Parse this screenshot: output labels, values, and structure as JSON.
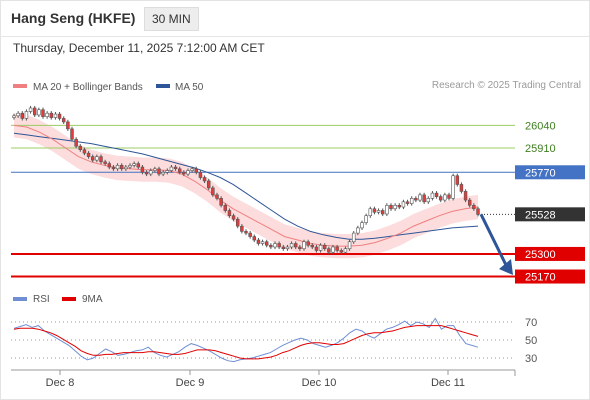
{
  "header": {
    "title": "Hang Seng (HKFE)",
    "timeframe": "30 MIN",
    "datetime": "Thursday, December 11, 2025 7:12:00 AM CET",
    "credit": "Research © 2025 Trading Central"
  },
  "colors": {
    "candle_up": "#ffffff",
    "candle_down": "#e03c3c",
    "candle_outline": "#555555",
    "ma20": "#f08080",
    "bollinger_fill": "#fbd3d3",
    "ma50": "#2e5597",
    "resistance": "#9ccc65",
    "pivot": "#4472c4",
    "support": "#e00000",
    "current_price": "#333333",
    "rsi": "#6f8ed4",
    "rsi_ma": "#e00000",
    "arrow": "#2e5597"
  },
  "chart_data": [
    {
      "type": "line",
      "subtype": "candlestick",
      "title": "Hang Seng (HKFE)",
      "timeframe": "30 MIN",
      "x_tick_labels": [
        "Dec 8",
        "Dec 9",
        "Dec 10",
        "Dec 11"
      ],
      "legend": [
        {
          "name": "MA 20 + Bollinger Bands",
          "color": "#f08080"
        },
        {
          "name": "MA 50",
          "color": "#2e5597"
        }
      ],
      "legend_placement": "top-left",
      "ylim": [
        25150,
        26140
      ],
      "levels": [
        {
          "label": "26040",
          "value": 26040,
          "kind": "resistance"
        },
        {
          "label": "25910",
          "value": 25910,
          "kind": "resistance"
        },
        {
          "label": "25770",
          "value": 25770,
          "kind": "pivot"
        },
        {
          "label": "25528",
          "value": 25528,
          "kind": "current"
        },
        {
          "label": "25300",
          "value": 25300,
          "kind": "support"
        },
        {
          "label": "25170",
          "value": 25170,
          "kind": "support"
        }
      ],
      "close": [
        26095,
        26110,
        26080,
        26120,
        26140,
        26100,
        26130,
        26090,
        26110,
        26085,
        26105,
        26080,
        26060,
        26020,
        25960,
        25920,
        25900,
        25880,
        25860,
        25840,
        25860,
        25830,
        25820,
        25800,
        25790,
        25810,
        25790,
        25800,
        25810,
        25820,
        25800,
        25770,
        25760,
        25780,
        25790,
        25760,
        25770,
        25780,
        25800,
        25790,
        25770,
        25760,
        25780,
        25790,
        25770,
        25740,
        25720,
        25680,
        25640,
        25620,
        25580,
        25550,
        25520,
        25500,
        25460,
        25430,
        25420,
        25400,
        25380,
        25360,
        25370,
        25350,
        25340,
        25360,
        25340,
        25330,
        25340,
        25360,
        25340,
        25330,
        25370,
        25350,
        25340,
        25320,
        25350,
        25330,
        25310,
        25340,
        25320,
        25310,
        25330,
        25370,
        25420,
        25450,
        25480,
        25520,
        25560,
        25540,
        25550,
        25530,
        25580,
        25560,
        25580,
        25570,
        25600,
        25590,
        25620,
        25610,
        25640,
        25600,
        25620,
        25650,
        25630,
        25610,
        25640,
        25620,
        25750,
        25700,
        25660,
        25610,
        25580,
        25560,
        25528
      ],
      "ma50": [
        25995,
        25985,
        25975,
        25965,
        25955,
        25945,
        25935,
        25920,
        25905,
        25890,
        25875,
        25855,
        25835,
        25815,
        25795,
        25770,
        25740,
        25700,
        25650,
        25600,
        25550,
        25500,
        25460,
        25430,
        25410,
        25395,
        25385,
        25385,
        25390,
        25400,
        25410,
        25420,
        25430,
        25440,
        25450,
        25455,
        25460
      ],
      "ma20": [
        26040,
        26030,
        26000,
        25960,
        25910,
        25860,
        25830,
        25810,
        25795,
        25790,
        25785,
        25785,
        25780,
        25760,
        25720,
        25670,
        25610,
        25560,
        25520,
        25480,
        25440,
        25400,
        25380,
        25360,
        25350,
        25345,
        25345,
        25350,
        25365,
        25390,
        25420,
        25460,
        25490,
        25520,
        25545,
        25560,
        25570
      ],
      "rsi_panel": {
        "legend": [
          {
            "name": "RSI",
            "color": "#6f8ed4"
          },
          {
            "name": "9MA",
            "color": "#e00000"
          }
        ],
        "ylim": [
          20,
          80
        ],
        "ticks": [
          "70",
          "50",
          "30"
        ],
        "rsi": [
          63,
          65,
          67,
          64,
          66,
          60,
          56,
          52,
          48,
          44,
          38,
          32,
          28,
          30,
          35,
          40,
          37,
          33,
          34,
          36,
          38,
          39,
          42,
          36,
          33,
          31,
          34,
          37,
          42,
          46,
          44,
          41,
          38,
          34,
          30,
          27,
          26,
          28,
          29,
          30,
          32,
          34,
          36,
          40,
          44,
          47,
          50,
          52,
          50,
          46,
          44,
          42,
          44,
          47,
          52,
          58,
          62,
          60,
          55,
          52,
          57,
          62,
          64,
          67,
          71,
          66,
          70,
          68,
          64,
          74,
          62,
          66,
          66,
          55,
          46,
          44,
          42
        ],
        "ma9": [
          62,
          63,
          63,
          63,
          62,
          60,
          58,
          55,
          51,
          47,
          43,
          38,
          35,
          33,
          33,
          34,
          34,
          35,
          36,
          36,
          36,
          36,
          37,
          37,
          36,
          35,
          34,
          34,
          35,
          37,
          39,
          39,
          39,
          38,
          36,
          34,
          32,
          30,
          29,
          29,
          29,
          30,
          31,
          33,
          36,
          38,
          41,
          44,
          46,
          47,
          47,
          46,
          45,
          45,
          46,
          49,
          52,
          55,
          57,
          58,
          58,
          59,
          60,
          62,
          64,
          65,
          66,
          66,
          66,
          66,
          66,
          64,
          62,
          60,
          58,
          56,
          54
        ]
      }
    }
  ]
}
